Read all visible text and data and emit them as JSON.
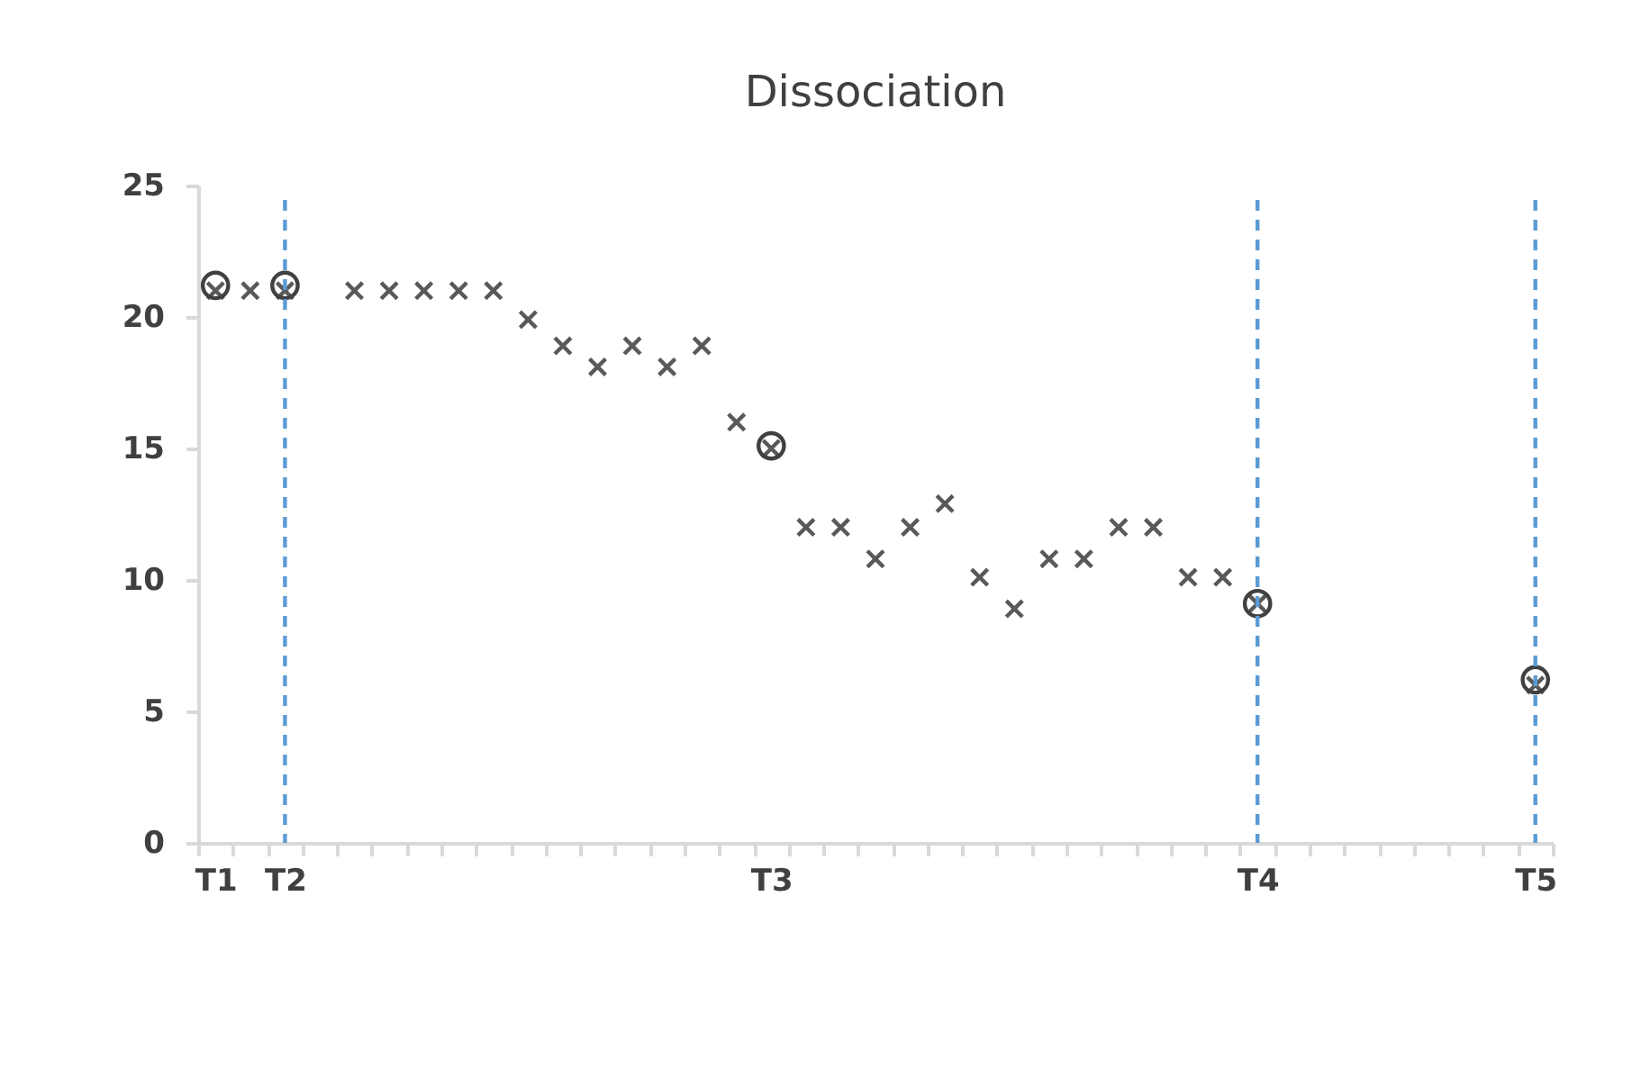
{
  "chart_data": {
    "type": "scatter",
    "title": "Dissociation",
    "categories": [
      "T1",
      null,
      "T2",
      null,
      null,
      null,
      null,
      null,
      null,
      null,
      null,
      null,
      null,
      null,
      null,
      null,
      "T3",
      null,
      null,
      null,
      null,
      null,
      null,
      null,
      null,
      null,
      null,
      null,
      null,
      null,
      "T4",
      null,
      null,
      null,
      null,
      null,
      null,
      null,
      "T5"
    ],
    "series": [
      {
        "marker": "cross",
        "color": "#595959",
        "values": [
          21,
          21,
          21,
          null,
          21,
          21,
          21,
          21,
          21,
          19.9,
          18.9,
          18.1,
          18.9,
          18.1,
          18.9,
          16,
          15,
          12,
          12,
          10.8,
          12,
          12.9,
          10.1,
          8.9,
          10.8,
          10.8,
          12,
          12,
          10.1,
          10.1,
          9.1,
          null,
          null,
          null,
          null,
          null,
          null,
          null,
          6
        ]
      },
      {
        "marker": "circle",
        "color": "#404040",
        "values": [
          21.2,
          null,
          21.2,
          null,
          null,
          null,
          null,
          null,
          null,
          null,
          null,
          null,
          null,
          null,
          null,
          null,
          15.1,
          null,
          null,
          null,
          null,
          null,
          null,
          null,
          null,
          null,
          null,
          null,
          null,
          null,
          9.1,
          null,
          null,
          null,
          null,
          null,
          null,
          null,
          6.2
        ]
      }
    ],
    "ylim": [
      0,
      25
    ],
    "yticks": [
      0,
      5,
      10,
      15,
      20,
      25
    ],
    "ref_lines": [
      {
        "axis": "x",
        "value": "T2",
        "color": "#5b9bd5",
        "line_style": "dashed"
      },
      {
        "axis": "x",
        "value": "T4",
        "color": "#5b9bd5",
        "line_style": "dashed"
      },
      {
        "axis": "x",
        "value": "T5",
        "color": "#5b9bd5",
        "line_style": "dashed"
      }
    ],
    "grid": false,
    "legend": false
  }
}
